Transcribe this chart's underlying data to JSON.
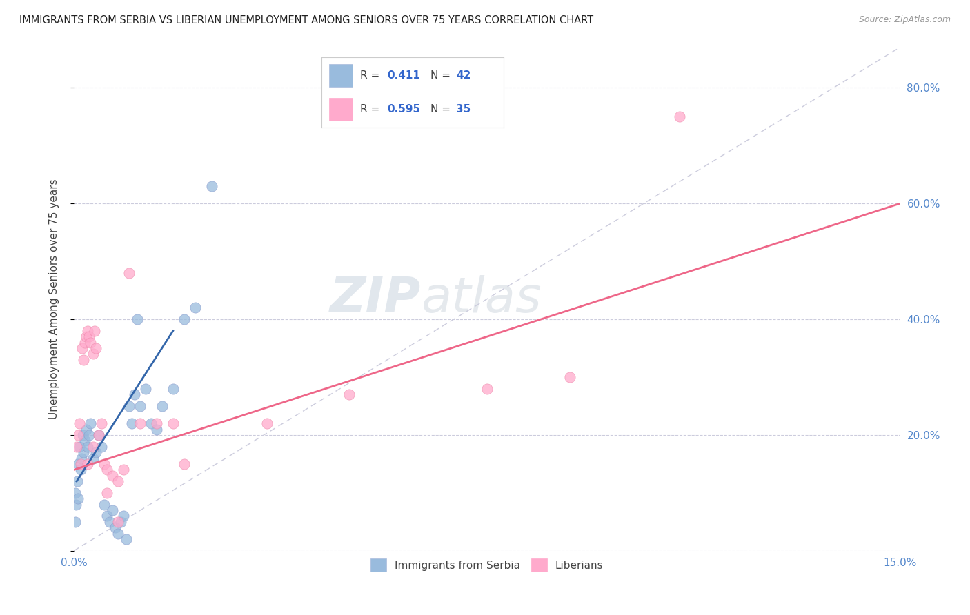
{
  "title": "IMMIGRANTS FROM SERBIA VS LIBERIAN UNEMPLOYMENT AMONG SENIORS OVER 75 YEARS CORRELATION CHART",
  "source": "Source: ZipAtlas.com",
  "ylabel": "Unemployment Among Seniors over 75 years",
  "xlim": [
    0.0,
    15.0
  ],
  "ylim": [
    0.0,
    87.0
  ],
  "ytick_positions": [
    0,
    20,
    40,
    60,
    80
  ],
  "ytick_labels_right": [
    "",
    "20.0%",
    "40.0%",
    "60.0%",
    "80.0%"
  ],
  "color_serbia": "#99BBDD",
  "color_liberian": "#FFAACC",
  "color_trend_serbia": "#3366AA",
  "color_trend_liberian": "#EE6688",
  "color_diagonal": "#CCCCDD",
  "watermark_zip": "ZIP",
  "watermark_atlas": "atlas",
  "serbia_trend_x1": 0.05,
  "serbia_trend_y1": 12.0,
  "serbia_trend_x2": 1.8,
  "serbia_trend_y2": 38.0,
  "liberian_trend_x1": 0.0,
  "liberian_trend_y1": 14.0,
  "liberian_trend_x2": 15.0,
  "liberian_trend_y2": 60.0,
  "serbia_x": [
    0.02,
    0.04,
    0.06,
    0.08,
    0.1,
    0.12,
    0.14,
    0.16,
    0.18,
    0.2,
    0.22,
    0.25,
    0.28,
    0.3,
    0.35,
    0.4,
    0.45,
    0.5,
    0.55,
    0.6,
    0.65,
    0.7,
    0.75,
    0.8,
    0.85,
    0.9,
    0.95,
    1.0,
    1.05,
    1.1,
    1.15,
    1.2,
    1.3,
    1.4,
    1.5,
    1.6,
    1.8,
    2.0,
    2.2,
    2.5,
    0.03,
    0.07
  ],
  "serbia_y": [
    10.0,
    8.0,
    12.0,
    15.0,
    18.0,
    14.0,
    16.0,
    20.0,
    17.0,
    19.0,
    21.0,
    18.0,
    20.0,
    22.0,
    16.0,
    17.0,
    20.0,
    18.0,
    8.0,
    6.0,
    5.0,
    7.0,
    4.0,
    3.0,
    5.0,
    6.0,
    2.0,
    25.0,
    22.0,
    27.0,
    40.0,
    25.0,
    28.0,
    22.0,
    21.0,
    25.0,
    28.0,
    40.0,
    42.0,
    63.0,
    5.0,
    9.0
  ],
  "liberian_x": [
    0.05,
    0.08,
    0.1,
    0.12,
    0.15,
    0.18,
    0.2,
    0.22,
    0.25,
    0.28,
    0.3,
    0.35,
    0.38,
    0.4,
    0.45,
    0.5,
    0.55,
    0.6,
    0.7,
    0.8,
    0.9,
    1.0,
    1.2,
    1.5,
    1.8,
    2.0,
    3.5,
    5.0,
    7.5,
    9.0,
    11.0,
    0.25,
    0.35,
    0.6,
    0.8
  ],
  "liberian_y": [
    18.0,
    20.0,
    22.0,
    15.0,
    35.0,
    33.0,
    36.0,
    37.0,
    38.0,
    37.0,
    36.0,
    34.0,
    38.0,
    35.0,
    20.0,
    22.0,
    15.0,
    14.0,
    13.0,
    12.0,
    14.0,
    48.0,
    22.0,
    22.0,
    22.0,
    15.0,
    22.0,
    27.0,
    28.0,
    30.0,
    75.0,
    15.0,
    18.0,
    10.0,
    5.0
  ]
}
